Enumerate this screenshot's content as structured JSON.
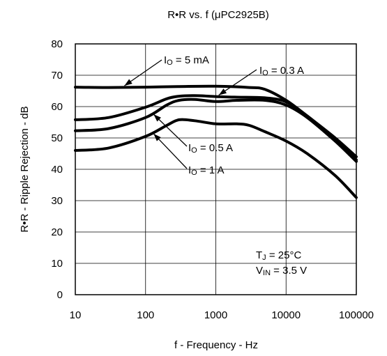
{
  "chart_data": {
    "type": "line",
    "title": "R•R vs. f (μPC2925B)",
    "xlabel": "f - Frequency - Hz",
    "ylabel": "R•R - Ripple Rejection - dB",
    "x_scale": "log",
    "xlim": [
      10,
      100000
    ],
    "ylim": [
      0,
      80
    ],
    "x_ticks": [
      10,
      100,
      1000,
      10000,
      100000
    ],
    "x_tick_labels": [
      "10",
      "100",
      "1000",
      "10000",
      "100000"
    ],
    "y_ticks": [
      0,
      10,
      20,
      30,
      40,
      50,
      60,
      70,
      80
    ],
    "y_tick_labels": [
      "0",
      "10",
      "20",
      "30",
      "40",
      "50",
      "60",
      "70",
      "80"
    ],
    "grid": true,
    "series": [
      {
        "name": "IO = 5 mA",
        "x": [
          10,
          30,
          100,
          300,
          1000,
          3000,
          5000,
          10000,
          20000,
          50000,
          100000
        ],
        "y": [
          66.2,
          66.1,
          66.2,
          66.4,
          66.5,
          66.1,
          65.5,
          62.0,
          57.0,
          50.0,
          44.0
        ]
      },
      {
        "name": "IO = 0.3 A",
        "x": [
          10,
          30,
          100,
          200,
          300,
          500,
          1000,
          2000,
          5000,
          10000,
          20000,
          50000,
          100000
        ],
        "y": [
          55.8,
          56.5,
          59.8,
          62.5,
          63.3,
          63.5,
          63.2,
          63.0,
          62.8,
          61.5,
          57.0,
          49.5,
          43.0
        ]
      },
      {
        "name": "IO = 0.5 A",
        "x": [
          10,
          30,
          100,
          200,
          300,
          500,
          1000,
          2000,
          5000,
          10000,
          20000,
          50000,
          100000
        ],
        "y": [
          52.3,
          53.0,
          56.5,
          60.5,
          62.0,
          62.3,
          61.6,
          62.0,
          62.0,
          60.5,
          56.5,
          49.0,
          42.5
        ]
      },
      {
        "name": "IO = 1 A",
        "x": [
          10,
          30,
          100,
          200,
          300,
          500,
          1000,
          2000,
          3000,
          5000,
          10000,
          20000,
          50000,
          100000
        ],
        "y": [
          46.0,
          46.8,
          50.5,
          54.0,
          55.8,
          55.5,
          54.5,
          54.5,
          54.0,
          52.0,
          49.0,
          45.0,
          38.0,
          31.0
        ]
      }
    ]
  },
  "labels": {
    "io_5ma": {
      "main": "I",
      "sub": "O",
      "rest": " = 5 mA"
    },
    "io_03a": {
      "main": "I",
      "sub": "O",
      "rest": " = 0.3 A"
    },
    "io_05a": {
      "main": "I",
      "sub": "O",
      "rest": " = 0.5 A"
    },
    "io_1a": {
      "main": "I",
      "sub": "O",
      "rest": " = 1 A"
    }
  },
  "conditions": {
    "tj": {
      "main": "T",
      "sub": "J",
      "rest": " = 25°C"
    },
    "vin": {
      "main": "V",
      "sub": "IN",
      "rest": " = 3.5 V"
    }
  },
  "colors": {
    "line": "#000000",
    "grid": "#000000",
    "background": "#ffffff"
  }
}
